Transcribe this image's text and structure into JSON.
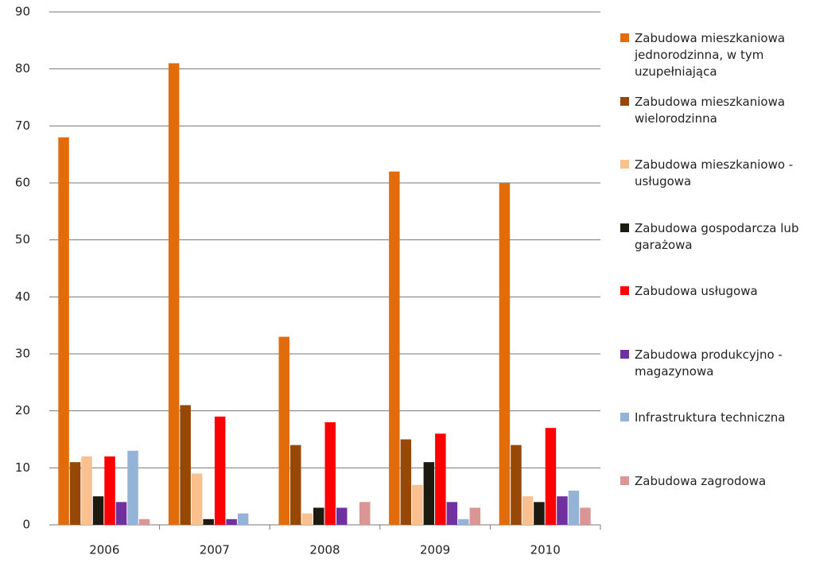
{
  "chart_data": {
    "type": "bar",
    "categories": [
      "2006",
      "2007",
      "2008",
      "2009",
      "2010"
    ],
    "series": [
      {
        "name": "Zabudowa mieszkaniowa jednorodzinna, w tym uzupełniająca",
        "color": "#e36c0a",
        "values": [
          68,
          81,
          33,
          62,
          60
        ]
      },
      {
        "name": "Zabudowa mieszkaniowa wielorodzinna",
        "color": "#974806",
        "values": [
          11,
          21,
          14,
          15,
          14
        ]
      },
      {
        "name": "Zabudowa mieszkaniowo - usługowa",
        "color": "#fac08f",
        "values": [
          12,
          9,
          2,
          7,
          5
        ]
      },
      {
        "name": "Zabudowa gospodarcza lub garażowa",
        "color": "#1d1b10",
        "values": [
          5,
          1,
          3,
          11,
          4
        ]
      },
      {
        "name": "Zabudowa usługowa",
        "color": "#ff0000",
        "values": [
          12,
          19,
          18,
          16,
          17
        ]
      },
      {
        "name": "Zabudowa produkcyjno - magazynowa",
        "color": "#7030a0",
        "values": [
          4,
          1,
          3,
          4,
          5
        ]
      },
      {
        "name": "Infrastruktura techniczna",
        "color": "#95b3d7",
        "values": [
          13,
          2,
          0,
          1,
          6
        ]
      },
      {
        "name": "Zabudowa zagrodowa",
        "color": "#d99694",
        "values": [
          1,
          0,
          4,
          3,
          3
        ]
      }
    ],
    "ylim": [
      0,
      90
    ],
    "yticks": [
      0,
      10,
      20,
      30,
      40,
      50,
      60,
      70,
      80,
      90
    ],
    "grid": true,
    "legend": "right"
  }
}
